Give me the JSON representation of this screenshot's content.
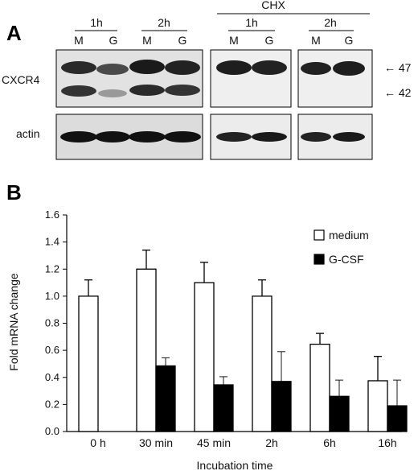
{
  "panel_a": {
    "letter": "A",
    "chx_label": "CHX",
    "groups": [
      {
        "time": "1h",
        "lanes": [
          "M",
          "G"
        ]
      },
      {
        "time": "2h",
        "lanes": [
          "M",
          "G"
        ]
      },
      {
        "time": "1h",
        "lanes": [
          "M",
          "G"
        ]
      },
      {
        "time": "2h",
        "lanes": [
          "M",
          "G"
        ]
      }
    ],
    "row_labels": {
      "cxcr4": "CXCR4",
      "actin": "actin"
    },
    "markers": [
      {
        "label": "← 47"
      },
      {
        "label": "← 42"
      }
    ]
  },
  "panel_b": {
    "letter": "B",
    "chart_data": {
      "type": "bar",
      "categories": [
        "0 h",
        "30 min",
        "45 min",
        "2h",
        "6h",
        "16h"
      ],
      "series": [
        {
          "name": "medium",
          "color": "#ffffff",
          "values": [
            1.0,
            1.2,
            1.1,
            1.0,
            0.645,
            0.375
          ],
          "errors": [
            0.12,
            0.14,
            0.15,
            0.12,
            0.08,
            0.18
          ]
        },
        {
          "name": "G-CSF",
          "color": "#000000",
          "values": [
            null,
            0.485,
            0.345,
            0.37,
            0.26,
            0.19
          ],
          "errors": [
            null,
            0.06,
            0.06,
            0.22,
            0.12,
            0.19
          ]
        }
      ],
      "xlabel": "Incubation time",
      "ylabel": "Fold mRNA change",
      "ylim": [
        0,
        1.6
      ],
      "yticks": [
        "0.0",
        "0.2",
        "0.4",
        "0.6",
        "0.8",
        "1.0",
        "1.2",
        "1.4",
        "1.6"
      ],
      "legend_position": "top-right",
      "grid": false
    }
  }
}
